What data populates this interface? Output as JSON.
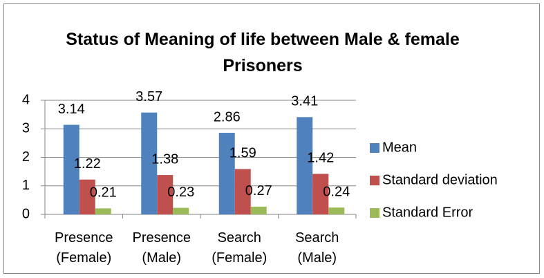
{
  "chart_data": {
    "type": "bar",
    "title": "Status of Meaning of life between Male & female Prisoners",
    "categories": [
      "Presence (Female)",
      "Presence (Male)",
      "Search (Female)",
      "Search (Male)"
    ],
    "series": [
      {
        "name": "Mean",
        "color": "#4f81bd",
        "values": [
          3.14,
          3.57,
          2.86,
          3.41
        ]
      },
      {
        "name": "Standard deviation",
        "color": "#c0504d",
        "values": [
          1.22,
          1.38,
          1.59,
          1.42
        ]
      },
      {
        "name": "Standard Error",
        "color": "#9bbb59",
        "values": [
          0.21,
          0.23,
          0.27,
          0.24
        ]
      }
    ],
    "ylim": [
      0,
      4
    ],
    "yticks": [
      0,
      1,
      2,
      3,
      4
    ],
    "grid": true,
    "legend": "right"
  }
}
